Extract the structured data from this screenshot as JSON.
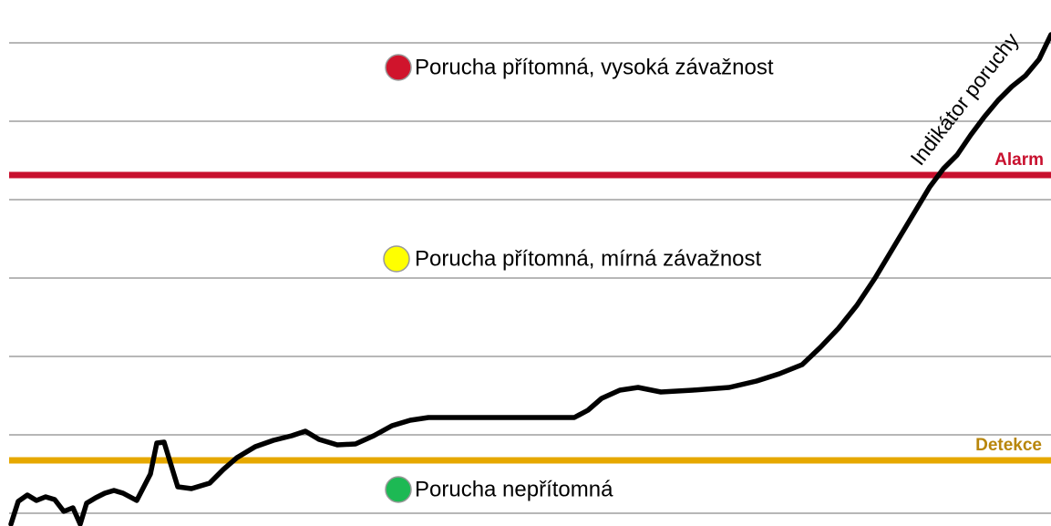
{
  "zones": {
    "high": "Porucha přítomná, vysoká závažnost",
    "medium": "Porucha přítomná, mírná závažnost",
    "none": "Porucha nepřítomná"
  },
  "levels": {
    "alarm": "Alarm",
    "detection": "Detekce"
  },
  "curve_label": "Indikátor poruchy"
}
